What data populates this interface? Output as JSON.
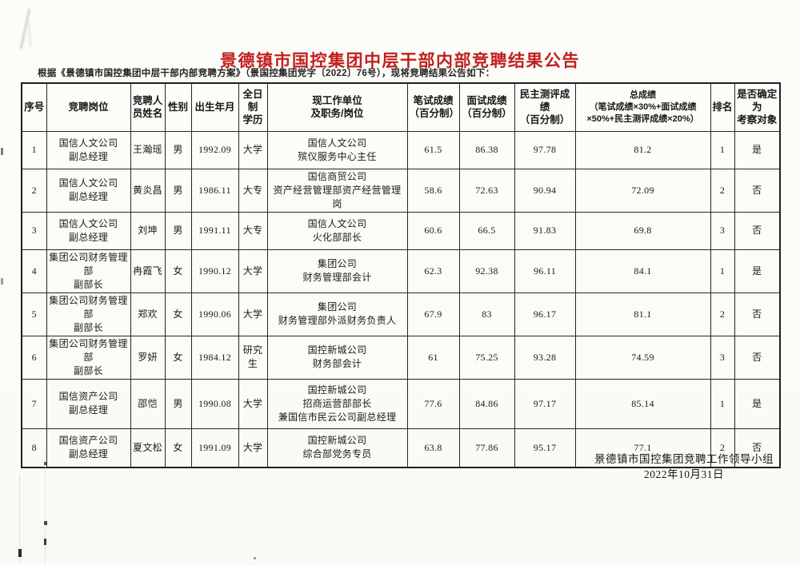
{
  "page": {
    "title": "景德镇市国控集团中层干部内部竞聘结果公告",
    "title_color": "#c21e1e",
    "subtitle": "根据《景德镇市国控集团中层干部内部竞聘方案》（景国控集团党字〔2022〕76号），现将竞聘结果公告如下："
  },
  "table": {
    "headers": [
      "序号",
      "竞聘岗位",
      "竞聘人\n员姓名",
      "性别",
      "出生年月",
      "全日制\n学历",
      "现工作单位\n及职务/岗位",
      "笔试成绩\n（百分制）",
      "面试成绩\n（百分制）",
      "民主测评成绩\n（百分制）",
      "总成绩\n（笔试成绩×30%+面试成绩\n×50%+民主测评成绩×20%）",
      "排名",
      "是否确定为\n考察对象"
    ],
    "rows": [
      [
        "1",
        "国信人文公司\n副总经理",
        "王瀚瑶",
        "男",
        "1992.09",
        "大学",
        "国信人文公司\n殡仪服务中心主任",
        "61.5",
        "86.38",
        "97.78",
        "81.2",
        "1",
        "是"
      ],
      [
        "2",
        "国信人文公司\n副总经理",
        "黄炎昌",
        "男",
        "1986.11",
        "大专",
        "国信商贸公司\n资产经营管理部资产经营管理岗",
        "58.6",
        "72.63",
        "90.94",
        "72.09",
        "2",
        "否"
      ],
      [
        "3",
        "国信人文公司\n副总经理",
        "刘坤",
        "男",
        "1991.11",
        "大专",
        "国信人文公司\n火化部部长",
        "60.6",
        "66.5",
        "91.83",
        "69.8",
        "3",
        "否"
      ],
      [
        "4",
        "集团公司财务管理部\n副部长",
        "冉霞飞",
        "女",
        "1990.12",
        "大学",
        "集团公司\n财务管理部会计",
        "62.3",
        "92.38",
        "96.11",
        "84.1",
        "1",
        "是"
      ],
      [
        "5",
        "集团公司财务管理部\n副部长",
        "郑欢",
        "女",
        "1990.06",
        "大学",
        "集团公司\n财务管理部外派财务负责人",
        "67.9",
        "83",
        "96.17",
        "81.1",
        "2",
        "否"
      ],
      [
        "6",
        "集团公司财务管理部\n副部长",
        "罗妍",
        "女",
        "1984.12",
        "研究生",
        "国控新城公司\n财务部会计",
        "61",
        "75.25",
        "93.28",
        "74.59",
        "3",
        "否"
      ],
      [
        "7",
        "国信资产公司\n副总经理",
        "邵恺",
        "男",
        "1990.08",
        "大学",
        "国控新城公司\n招商运营部部长\n兼国信市民云公司副总经理",
        "77.6",
        "84.86",
        "97.17",
        "85.14",
        "1",
        "是"
      ],
      [
        "8",
        "国信资产公司\n副总经理",
        "夏文松",
        "女",
        "1991.09",
        "大学",
        "国控新城公司\n综合部党务专员",
        "63.8",
        "77.86",
        "95.17",
        "77.1",
        "2",
        "否"
      ]
    ]
  },
  "footer": {
    "organization": "景德镇市国控集团竞聘工作领导小组",
    "date": "2022年10月31日"
  }
}
